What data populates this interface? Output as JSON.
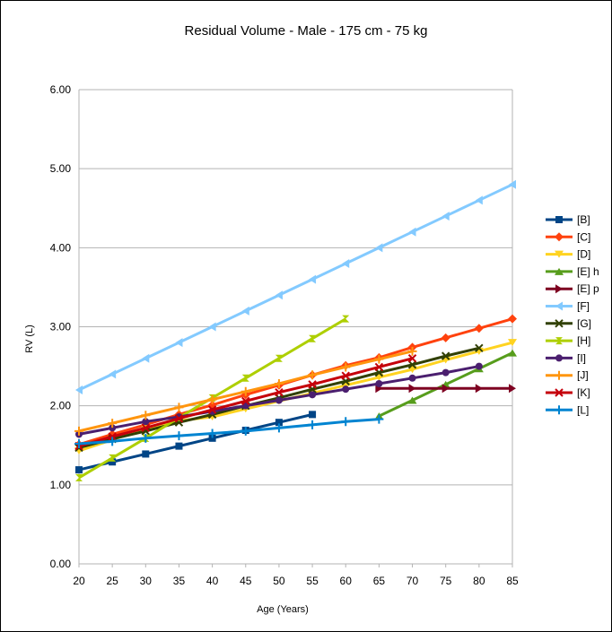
{
  "chart_data": {
    "type": "line",
    "title": "Residual Volume - Male - 175 cm - 75 kg",
    "xlabel": "Age (Years)",
    "ylabel": "RV (L)",
    "categories": [
      20,
      25,
      30,
      35,
      40,
      45,
      50,
      55,
      60,
      65,
      70,
      75,
      80,
      85
    ],
    "x_tick_labels": [
      "20",
      "25",
      "30",
      "35",
      "40",
      "45",
      "50",
      "55",
      "60",
      "65",
      "70",
      "75",
      "80",
      "85"
    ],
    "ylim": [
      0,
      6
    ],
    "y_tick_labels": [
      "0.00",
      "1.00",
      "2.00",
      "3.00",
      "4.00",
      "5.00",
      "6.00"
    ],
    "grid": true,
    "legend_position": "right",
    "series": [
      {
        "name": "[B]",
        "color": "#004586",
        "marker": "square",
        "values": [
          1.19,
          1.29,
          1.39,
          1.49,
          1.59,
          1.69,
          1.79,
          1.89,
          null,
          null,
          null,
          null,
          null,
          null
        ]
      },
      {
        "name": "[C]",
        "color": "#ff420e",
        "marker": "diamond",
        "values": [
          1.51,
          1.64,
          1.76,
          1.89,
          2.01,
          2.14,
          2.26,
          2.39,
          2.51,
          2.61,
          2.74,
          2.86,
          2.98,
          3.1
        ]
      },
      {
        "name": "[D]",
        "color": "#ffd320",
        "marker": "triangle-down",
        "values": [
          1.43,
          1.57,
          1.71,
          1.81,
          1.86,
          1.96,
          2.06,
          2.16,
          2.26,
          2.36,
          2.46,
          2.58,
          2.69,
          2.8
        ]
      },
      {
        "name": "[E] h",
        "color": "#579d1c",
        "marker": "triangle-up",
        "values": [
          null,
          null,
          null,
          null,
          null,
          null,
          null,
          null,
          null,
          1.87,
          2.07,
          2.27,
          2.47,
          2.67
        ]
      },
      {
        "name": "[E] p",
        "color": "#7e0021",
        "marker": "triangle-right",
        "values": [
          null,
          null,
          null,
          null,
          null,
          null,
          null,
          null,
          null,
          2.22,
          2.22,
          2.22,
          2.22,
          2.22
        ]
      },
      {
        "name": "[F]",
        "color": "#83caff",
        "marker": "triangle-left",
        "values": [
          2.2,
          2.4,
          2.6,
          2.8,
          3.0,
          3.2,
          3.4,
          3.6,
          3.8,
          4.0,
          4.2,
          4.4,
          4.6,
          4.8
        ]
      },
      {
        "name": "[G]",
        "color": "#314004",
        "marker": "x",
        "values": [
          1.47,
          1.58,
          1.68,
          1.79,
          1.89,
          2.0,
          2.1,
          2.21,
          2.31,
          2.42,
          2.52,
          2.63,
          2.73,
          null
        ]
      },
      {
        "name": "[H]",
        "color": "#aecf00",
        "marker": "hourglass",
        "values": [
          1.09,
          1.34,
          1.59,
          1.85,
          2.1,
          2.35,
          2.6,
          2.85,
          3.1,
          null,
          null,
          null,
          null,
          null
        ]
      },
      {
        "name": "[I]",
        "color": "#4b1f6f",
        "marker": "circle",
        "values": [
          1.64,
          1.72,
          1.8,
          1.86,
          1.93,
          2.0,
          2.07,
          2.14,
          2.21,
          2.28,
          2.35,
          2.42,
          2.5,
          null
        ]
      },
      {
        "name": "[J]",
        "color": "#ff950e",
        "marker": "plus",
        "values": [
          1.68,
          1.78,
          1.88,
          1.98,
          2.08,
          2.18,
          2.28,
          2.39,
          2.49,
          2.59,
          2.69,
          null,
          null,
          null
        ]
      },
      {
        "name": "[K]",
        "color": "#c5000b",
        "marker": "x",
        "values": [
          1.49,
          1.61,
          1.72,
          1.84,
          1.95,
          2.06,
          2.17,
          2.27,
          2.38,
          2.49,
          2.6,
          null,
          null,
          null
        ]
      },
      {
        "name": "[L]",
        "color": "#0084d1",
        "marker": "plus",
        "values": [
          1.52,
          1.55,
          1.59,
          1.62,
          1.65,
          1.68,
          1.72,
          1.76,
          1.8,
          1.83,
          null,
          null,
          null,
          null
        ]
      }
    ]
  }
}
